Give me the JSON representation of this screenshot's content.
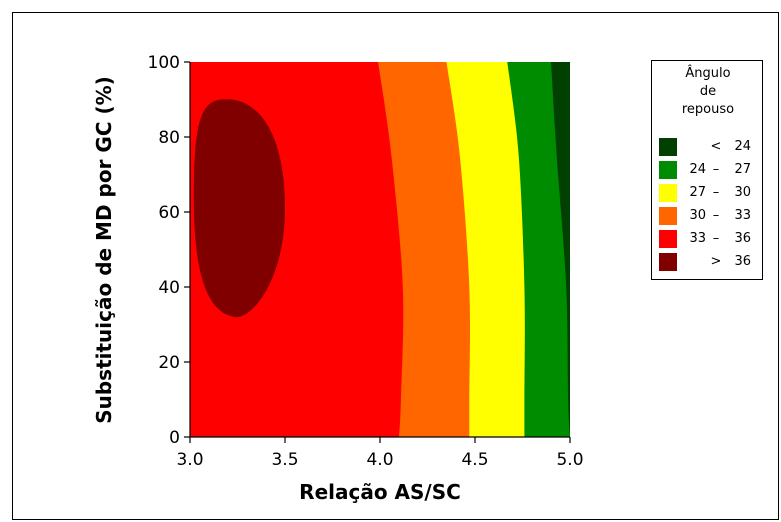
{
  "chart_data": {
    "type": "contour",
    "xlabel": "Relação AS/SC",
    "ylabel": "Substituição de MD por GC (%)",
    "xlim": [
      3.0,
      5.0
    ],
    "ylim": [
      0,
      100
    ],
    "x_ticks": [
      "3.0",
      "3.5",
      "4.0",
      "4.5",
      "5.0"
    ],
    "y_ticks": [
      "0",
      "20",
      "40",
      "60",
      "80",
      "100"
    ],
    "legend": {
      "title_lines": [
        "Ângulo",
        "de",
        "repouso"
      ],
      "position": "right",
      "items": [
        {
          "low": "",
          "op": "<",
          "high": "24",
          "color": "#004000"
        },
        {
          "low": "24",
          "op": "–",
          "high": "27",
          "color": "#008c00"
        },
        {
          "low": "27",
          "op": "–",
          "high": "30",
          "color": "#ffff00"
        },
        {
          "low": "30",
          "op": "–",
          "high": "33",
          "color": "#ff6600"
        },
        {
          "low": "33",
          "op": "–",
          "high": "36",
          "color": "#ff0000"
        },
        {
          "low": "",
          "op": ">",
          "high": "36",
          "color": "#800000"
        }
      ]
    },
    "boundaries": [
      {
        "level": 33,
        "points": [
          [
            3.99,
            100
          ],
          [
            4.06,
            75
          ],
          [
            4.12,
            40
          ],
          [
            4.11,
            10
          ],
          [
            4.1,
            0
          ]
        ]
      },
      {
        "level": 30,
        "points": [
          [
            4.35,
            100
          ],
          [
            4.42,
            75
          ],
          [
            4.47,
            40
          ],
          [
            4.47,
            10
          ],
          [
            4.47,
            0
          ]
        ]
      },
      {
        "level": 27,
        "points": [
          [
            4.67,
            100
          ],
          [
            4.73,
            75
          ],
          [
            4.76,
            40
          ],
          [
            4.76,
            10
          ],
          [
            4.76,
            0
          ]
        ]
      },
      {
        "level": 24,
        "points": [
          [
            4.9,
            100
          ],
          [
            4.93,
            75
          ],
          [
            4.98,
            40
          ],
          [
            4.99,
            10
          ],
          [
            5.0,
            0
          ]
        ]
      }
    ],
    "max_region": {
      "level": 36,
      "center": [
        3.29,
        61
      ],
      "x_range": [
        3.02,
        3.5
      ],
      "y_range": [
        32,
        90
      ]
    }
  }
}
